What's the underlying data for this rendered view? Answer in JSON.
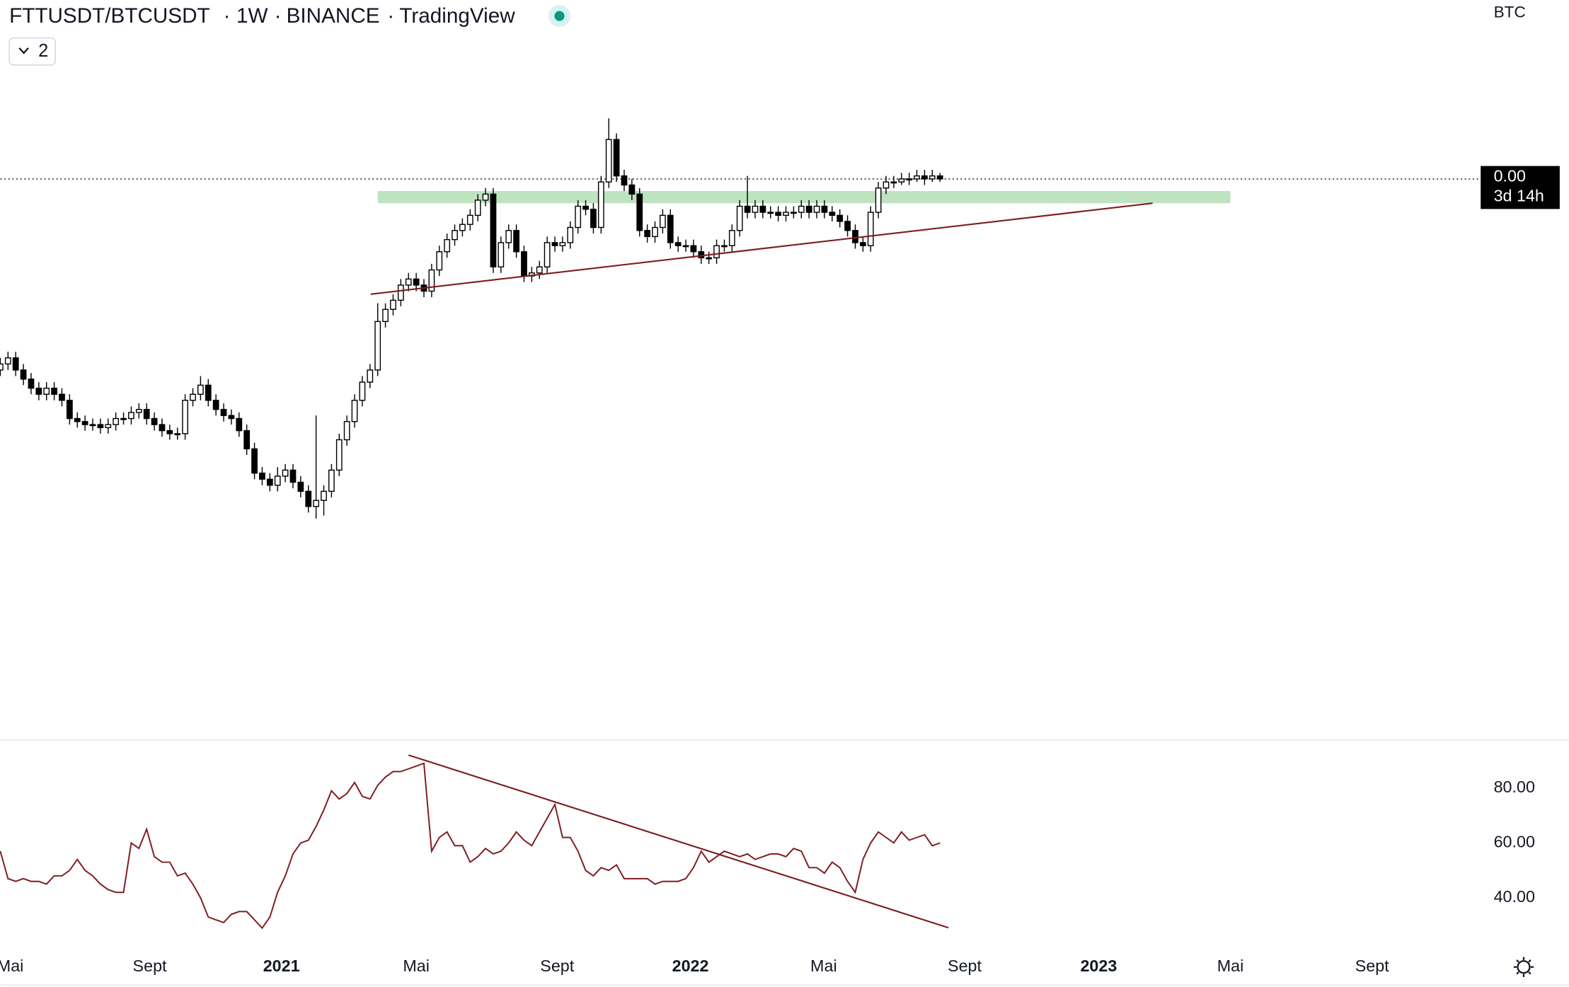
{
  "header": {
    "symbol": "FTTUSDT/BTCUSDT",
    "sep": "·",
    "interval": "1W",
    "exchange": "BINANCE",
    "source": "TradingView",
    "indicator_count": "2",
    "currency": "BTC"
  },
  "chart_data": [
    {
      "type": "candlestick",
      "up_color": "#ffffff",
      "down_color": "#000000",
      "open": [
        0.00068,
        0.0007,
        0.00072,
        0.00068,
        0.00065,
        0.00062,
        0.0006,
        0.00062,
        0.0006,
        0.00058,
        0.00052,
        0.00051,
        0.0005,
        0.0005,
        0.00049,
        0.0005,
        0.00052,
        0.00052,
        0.00054,
        0.00055,
        0.00052,
        0.0005,
        0.00048,
        0.00047,
        0.00047,
        0.00058,
        0.0006,
        0.00063,
        0.00058,
        0.00055,
        0.00053,
        0.00052,
        0.00048,
        0.00042,
        0.00034,
        0.00032,
        0.0003,
        0.00033,
        0.00035,
        0.00031,
        0.00028,
        0.00023,
        0.00025,
        0.00028,
        0.00035,
        0.00045,
        0.00051,
        0.00058,
        0.00064,
        0.00068,
        0.00084,
        0.00088,
        0.00091,
        0.00096,
        0.00098,
        0.00096,
        0.00094,
        0.00101,
        0.00107,
        0.00111,
        0.00114,
        0.00116,
        0.00119,
        0.00124,
        0.00126,
        0.00102,
        0.0011,
        0.00114,
        0.00107,
        0.00099,
        0.001,
        0.00102,
        0.0011,
        0.00109,
        0.0011,
        0.00115,
        0.00122,
        0.00121,
        0.00115,
        0.0013,
        0.00144,
        0.00132,
        0.00129,
        0.00126,
        0.00114,
        0.00112,
        0.00115,
        0.00119,
        0.0011,
        0.00109,
        0.00109,
        0.00107,
        0.00105,
        0.00105,
        0.00109,
        0.00109,
        0.00114,
        0.00122,
        0.0012,
        0.00122,
        0.0012,
        0.0012,
        0.00119,
        0.0012,
        0.0012,
        0.00122,
        0.0012,
        0.00122,
        0.0012,
        0.00119,
        0.00117,
        0.00114,
        0.0011,
        0.00109,
        0.0012,
        0.00128,
        0.0013,
        0.0013,
        0.00131,
        0.00131,
        0.00132,
        0.00131,
        0.00132
      ],
      "high": [
        0.00072,
        0.00074,
        0.00074,
        0.0007,
        0.00067,
        0.00064,
        0.00064,
        0.00064,
        0.00062,
        0.0006,
        0.00054,
        0.00053,
        0.00052,
        0.00052,
        0.00052,
        0.00054,
        0.00054,
        0.00056,
        0.00057,
        0.00057,
        0.00054,
        0.00052,
        0.0005,
        0.00049,
        0.0006,
        0.00062,
        0.00066,
        0.00065,
        0.0006,
        0.00057,
        0.00055,
        0.00054,
        0.0005,
        0.00044,
        0.00036,
        0.00034,
        0.00036,
        0.00037,
        0.00037,
        0.00033,
        0.0003,
        0.00053,
        0.0003,
        0.00037,
        0.00047,
        0.00053,
        0.0006,
        0.00066,
        0.0007,
        0.0009,
        0.0009,
        0.00093,
        0.00098,
        0.001,
        0.001,
        0.00098,
        0.00103,
        0.00109,
        0.00113,
        0.00116,
        0.00118,
        0.00121,
        0.00126,
        0.00128,
        0.00128,
        0.00112,
        0.00116,
        0.00116,
        0.00109,
        0.00102,
        0.00104,
        0.00112,
        0.00112,
        0.00112,
        0.00117,
        0.00124,
        0.00124,
        0.00123,
        0.00132,
        0.00151,
        0.00146,
        0.00134,
        0.00131,
        0.00128,
        0.00116,
        0.00117,
        0.00121,
        0.00121,
        0.00112,
        0.00111,
        0.00111,
        0.00109,
        0.00107,
        0.00111,
        0.00111,
        0.00116,
        0.00124,
        0.00132,
        0.00124,
        0.00124,
        0.00122,
        0.00122,
        0.00122,
        0.00122,
        0.00124,
        0.00124,
        0.00124,
        0.00124,
        0.00122,
        0.00121,
        0.00119,
        0.00116,
        0.00112,
        0.00122,
        0.0013,
        0.00132,
        0.00132,
        0.00133,
        0.00133,
        0.00134,
        0.00134,
        0.00134,
        0.00133
      ],
      "low": [
        0.00066,
        0.00068,
        0.00066,
        0.00063,
        0.0006,
        0.00058,
        0.00058,
        0.00058,
        0.00056,
        0.0005,
        0.00049,
        0.00048,
        0.00048,
        0.00047,
        0.00047,
        0.00048,
        0.0005,
        0.0005,
        0.00052,
        0.0005,
        0.00048,
        0.00046,
        0.00045,
        0.00045,
        0.00045,
        0.00056,
        0.00058,
        0.00056,
        0.00053,
        0.00051,
        0.0005,
        0.00046,
        0.0004,
        0.00032,
        0.0003,
        0.00028,
        0.00028,
        0.00031,
        0.00029,
        0.00026,
        0.00021,
        0.00019,
        0.0002,
        0.00026,
        0.00033,
        0.00043,
        0.00049,
        0.00056,
        0.00062,
        0.00066,
        0.00082,
        0.00086,
        0.00089,
        0.00094,
        0.00094,
        0.00092,
        0.00092,
        0.00099,
        0.00105,
        0.00109,
        0.00112,
        0.00114,
        0.00117,
        0.00122,
        0.001,
        0.001,
        0.00108,
        0.00105,
        0.00097,
        0.00097,
        0.00098,
        0.001,
        0.00107,
        0.00107,
        0.00108,
        0.00113,
        0.00119,
        0.00113,
        0.00113,
        0.00128,
        0.0013,
        0.00127,
        0.00124,
        0.00112,
        0.0011,
        0.0011,
        0.00113,
        0.00108,
        0.00107,
        0.00107,
        0.00105,
        0.00103,
        0.00103,
        0.00103,
        0.00107,
        0.00107,
        0.00112,
        0.00118,
        0.00118,
        0.00118,
        0.00118,
        0.00117,
        0.00117,
        0.00118,
        0.00118,
        0.00118,
        0.00118,
        0.00118,
        0.00117,
        0.00115,
        0.00112,
        0.00108,
        0.00107,
        0.00107,
        0.00118,
        0.00126,
        0.00128,
        0.00129,
        0.00129,
        0.0013,
        0.00129,
        0.0013,
        0.0013
      ],
      "close": [
        0.0007,
        0.00072,
        0.00068,
        0.00065,
        0.00062,
        0.0006,
        0.00062,
        0.0006,
        0.00058,
        0.00052,
        0.00051,
        0.0005,
        0.0005,
        0.00049,
        0.0005,
        0.00052,
        0.00052,
        0.00054,
        0.00055,
        0.00052,
        0.0005,
        0.00048,
        0.00047,
        0.00047,
        0.00058,
        0.0006,
        0.00063,
        0.00058,
        0.00055,
        0.00053,
        0.00052,
        0.00048,
        0.00042,
        0.00034,
        0.00032,
        0.0003,
        0.00033,
        0.00035,
        0.00031,
        0.00028,
        0.00023,
        0.00025,
        0.00028,
        0.00035,
        0.00045,
        0.00051,
        0.00058,
        0.00064,
        0.00068,
        0.00084,
        0.00088,
        0.00091,
        0.00096,
        0.00098,
        0.00096,
        0.00094,
        0.00101,
        0.00107,
        0.00111,
        0.00114,
        0.00116,
        0.00119,
        0.00124,
        0.00126,
        0.00102,
        0.0011,
        0.00114,
        0.00107,
        0.00099,
        0.001,
        0.00102,
        0.0011,
        0.00109,
        0.0011,
        0.00115,
        0.00122,
        0.00121,
        0.00115,
        0.0013,
        0.00144,
        0.00132,
        0.00129,
        0.00126,
        0.00114,
        0.00112,
        0.00115,
        0.00119,
        0.0011,
        0.00109,
        0.00109,
        0.00107,
        0.00105,
        0.00105,
        0.00109,
        0.00109,
        0.00114,
        0.00122,
        0.0012,
        0.00122,
        0.0012,
        0.0012,
        0.00119,
        0.0012,
        0.0012,
        0.00122,
        0.0012,
        0.00122,
        0.0012,
        0.00119,
        0.00117,
        0.00114,
        0.0011,
        0.00109,
        0.0012,
        0.00128,
        0.0013,
        0.0013,
        0.00131,
        0.00131,
        0.00132,
        0.00131,
        0.00132,
        0.00131
      ],
      "ylim": [
        -0.00054,
        0.0019
      ],
      "xlim": [
        0,
        192.2
      ],
      "xticks": [
        {
          "value": 1.3,
          "label": "Mai"
        },
        {
          "value": 19.4,
          "label": "Sept"
        },
        {
          "value": 36.5,
          "label": "2021"
        },
        {
          "value": 54.0,
          "label": "Mai"
        },
        {
          "value": 72.3,
          "label": "Sept"
        },
        {
          "value": 89.6,
          "label": "2022"
        },
        {
          "value": 106.9,
          "label": "Mai"
        },
        {
          "value": 125.2,
          "label": "Sept"
        },
        {
          "value": 142.6,
          "label": "2023"
        },
        {
          "value": 159.7,
          "label": "Mai"
        },
        {
          "value": 178.1,
          "label": "Sept"
        }
      ],
      "last_price": {
        "value": 0.00131,
        "label": "0.00"
      },
      "countdown": "3d 14h",
      "zone": {
        "x": [
          49.0,
          159.7
        ],
        "y": [
          0.00123,
          0.00127
        ],
        "color": "#bfe3c0"
      },
      "trendline": {
        "x": [
          48.1,
          149.6
        ],
        "y": [
          0.00093,
          0.00123
        ],
        "color": "#7f1d22"
      }
    },
    {
      "type": "line",
      "color": "#7f1d22",
      "values": [
        57,
        47,
        46,
        47,
        46,
        46,
        45,
        48,
        48,
        50,
        54,
        50,
        48,
        45,
        43,
        42,
        42,
        60,
        58,
        65,
        55,
        53,
        53,
        48,
        49,
        45,
        40,
        33,
        32,
        31,
        34,
        35,
        35,
        32,
        29,
        33,
        42,
        48,
        56,
        60,
        61,
        66,
        72,
        79,
        76,
        78,
        82,
        77,
        76,
        81,
        84,
        86,
        86,
        87,
        88,
        89,
        57,
        62,
        64,
        59,
        59,
        53,
        55,
        58,
        56,
        57,
        60,
        64,
        61,
        59,
        64,
        69,
        74,
        62,
        62,
        57,
        50,
        48,
        51,
        50,
        52,
        47,
        47,
        47,
        47,
        45,
        46,
        46,
        46,
        47,
        51,
        57,
        53,
        55,
        57,
        56,
        55,
        56,
        54,
        55,
        56,
        56,
        55,
        58,
        57,
        51,
        51,
        49,
        53,
        51,
        46,
        42,
        54,
        60,
        64,
        62,
        60,
        64,
        61,
        62,
        63,
        59,
        60
      ],
      "ylim": [
        21,
        97.5
      ],
      "yticks": [
        {
          "value": 40,
          "label": "40.00"
        },
        {
          "value": 60,
          "label": "60.00"
        },
        {
          "value": 80,
          "label": "80.00"
        }
      ],
      "trendline": {
        "x": [
          53.0,
          123.1
        ],
        "y": [
          92,
          29.1
        ],
        "color": "#7f1d22"
      }
    }
  ]
}
